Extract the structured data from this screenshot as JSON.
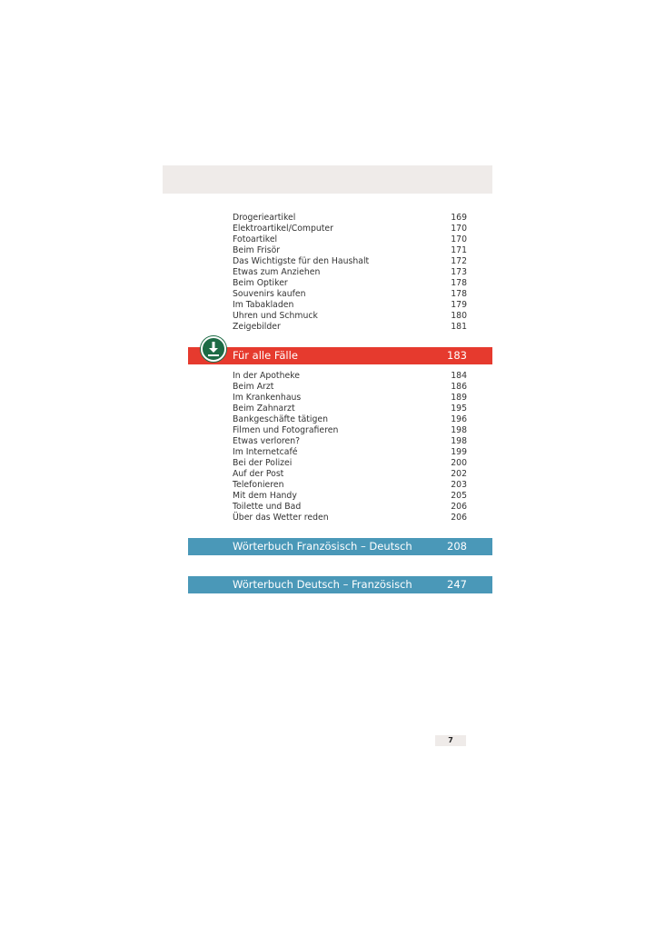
{
  "section1": {
    "items": [
      {
        "label": "Drogerieartikel",
        "page": "169"
      },
      {
        "label": "Elektroartikel/Computer",
        "page": "170"
      },
      {
        "label": "Fotoartikel",
        "page": "170"
      },
      {
        "label": "Beim Frisör",
        "page": "171"
      },
      {
        "label": "Das Wichtigste für den Haushalt",
        "page": "172"
      },
      {
        "label": "Etwas zum Anziehen",
        "page": "173"
      },
      {
        "label": "Beim Optiker",
        "page": "178"
      },
      {
        "label": "Souvenirs kaufen",
        "page": "178"
      },
      {
        "label": "Im Tabakladen",
        "page": "179"
      },
      {
        "label": "Uhren und Schmuck",
        "page": "180"
      },
      {
        "label": "Zeigebilder",
        "page": "181"
      }
    ]
  },
  "chapter_red": {
    "title": "Für alle Fälle",
    "page": "183",
    "color": "#e63a2e",
    "icon": "download-icon"
  },
  "section2": {
    "items": [
      {
        "label": "In der Apotheke",
        "page": "184"
      },
      {
        "label": "Beim Arzt",
        "page": "186"
      },
      {
        "label": "Im Krankenhaus",
        "page": "189"
      },
      {
        "label": "Beim Zahnarzt",
        "page": "195"
      },
      {
        "label": "Bankgeschäfte tätigen",
        "page": "196"
      },
      {
        "label": "Filmen und Fotografieren",
        "page": "198"
      },
      {
        "label": "Etwas verloren?",
        "page": "198"
      },
      {
        "label": "Im Internetcafé",
        "page": "199"
      },
      {
        "label": "Bei der Polizei",
        "page": "200"
      },
      {
        "label": "Auf der Post",
        "page": "202"
      },
      {
        "label": "Telefonieren",
        "page": "203"
      },
      {
        "label": "Mit dem Handy",
        "page": "205"
      },
      {
        "label": "Toilette und Bad",
        "page": "206"
      },
      {
        "label": "Über das Wetter reden",
        "page": "206"
      }
    ]
  },
  "dict1": {
    "title": "Wörterbuch Französisch – Deutsch",
    "page": "208",
    "color": "#4a98b8"
  },
  "dict2": {
    "title": "Wörterbuch Deutsch – Französisch",
    "page": "247"
  },
  "page_number": "7"
}
